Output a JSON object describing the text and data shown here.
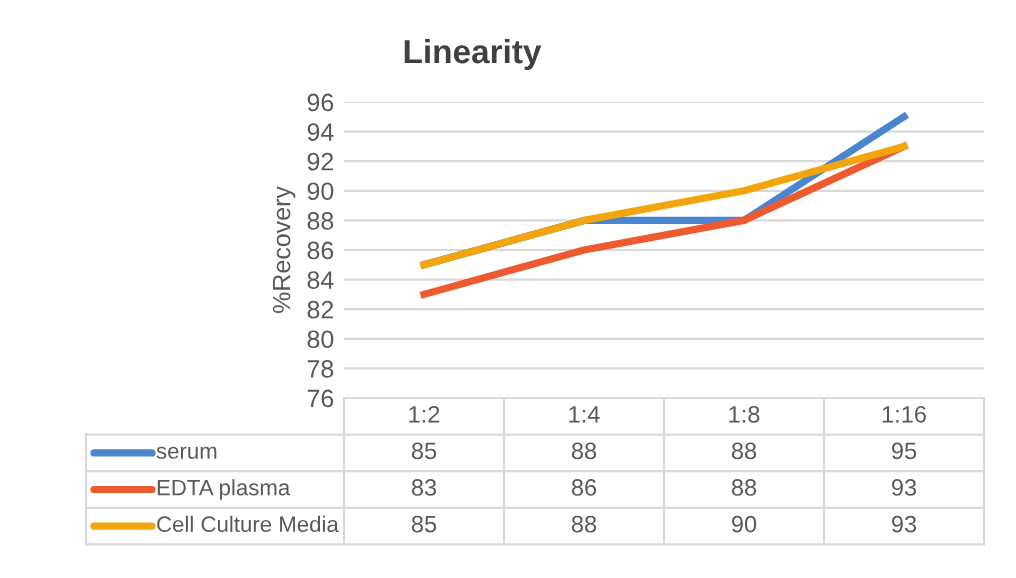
{
  "chart_data": {
    "type": "line",
    "title": "Linearity",
    "ylabel": "%Recovery",
    "categories": [
      "1:2",
      "1:4",
      "1:8",
      "1:16"
    ],
    "series": [
      {
        "name": "serum",
        "color": "#4a86d0",
        "values": [
          85,
          88,
          88,
          95
        ]
      },
      {
        "name": "EDTA plasma",
        "color": "#ee5a30",
        "values": [
          83,
          86,
          88,
          93
        ]
      },
      {
        "name": "Cell Culture Media",
        "color": "#f2a50c",
        "values": [
          85,
          88,
          90,
          93
        ]
      }
    ],
    "ylim": [
      76,
      96
    ],
    "yticks": [
      76,
      78,
      80,
      82,
      84,
      86,
      88,
      90,
      92,
      94,
      96
    ],
    "grid": "y",
    "legend": "bottom",
    "data_labels": true,
    "marker": "none",
    "line_style": "solid"
  }
}
